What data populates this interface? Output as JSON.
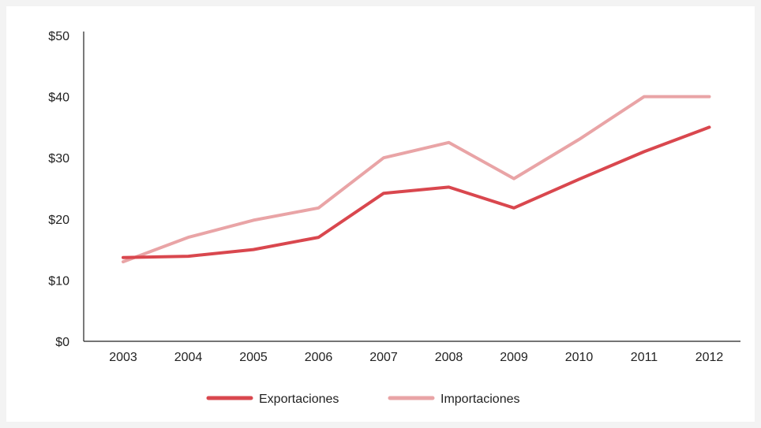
{
  "colors": {
    "exportaciones": "#d9474e",
    "importaciones": "#e9a4a6",
    "axis": "#222222"
  },
  "chart_data": {
    "type": "line",
    "x": [
      "2003",
      "2004",
      "2005",
      "2006",
      "2007",
      "2008",
      "2009",
      "2010",
      "2011",
      "2012"
    ],
    "series": [
      {
        "name": "Exportaciones",
        "values": [
          13.7,
          13.9,
          15.0,
          17.0,
          24.2,
          25.2,
          21.8,
          26.5,
          31.0,
          35.0
        ]
      },
      {
        "name": "Importaciones",
        "values": [
          13.0,
          17.0,
          19.8,
          21.8,
          30.0,
          32.5,
          26.6,
          33.0,
          40.0,
          40.0
        ]
      }
    ],
    "y_ticks": [
      "$0",
      "$10",
      "$20",
      "$30",
      "$40",
      "$50"
    ],
    "ylim": [
      0,
      50
    ],
    "legend_position": "bottom",
    "grid": false
  }
}
